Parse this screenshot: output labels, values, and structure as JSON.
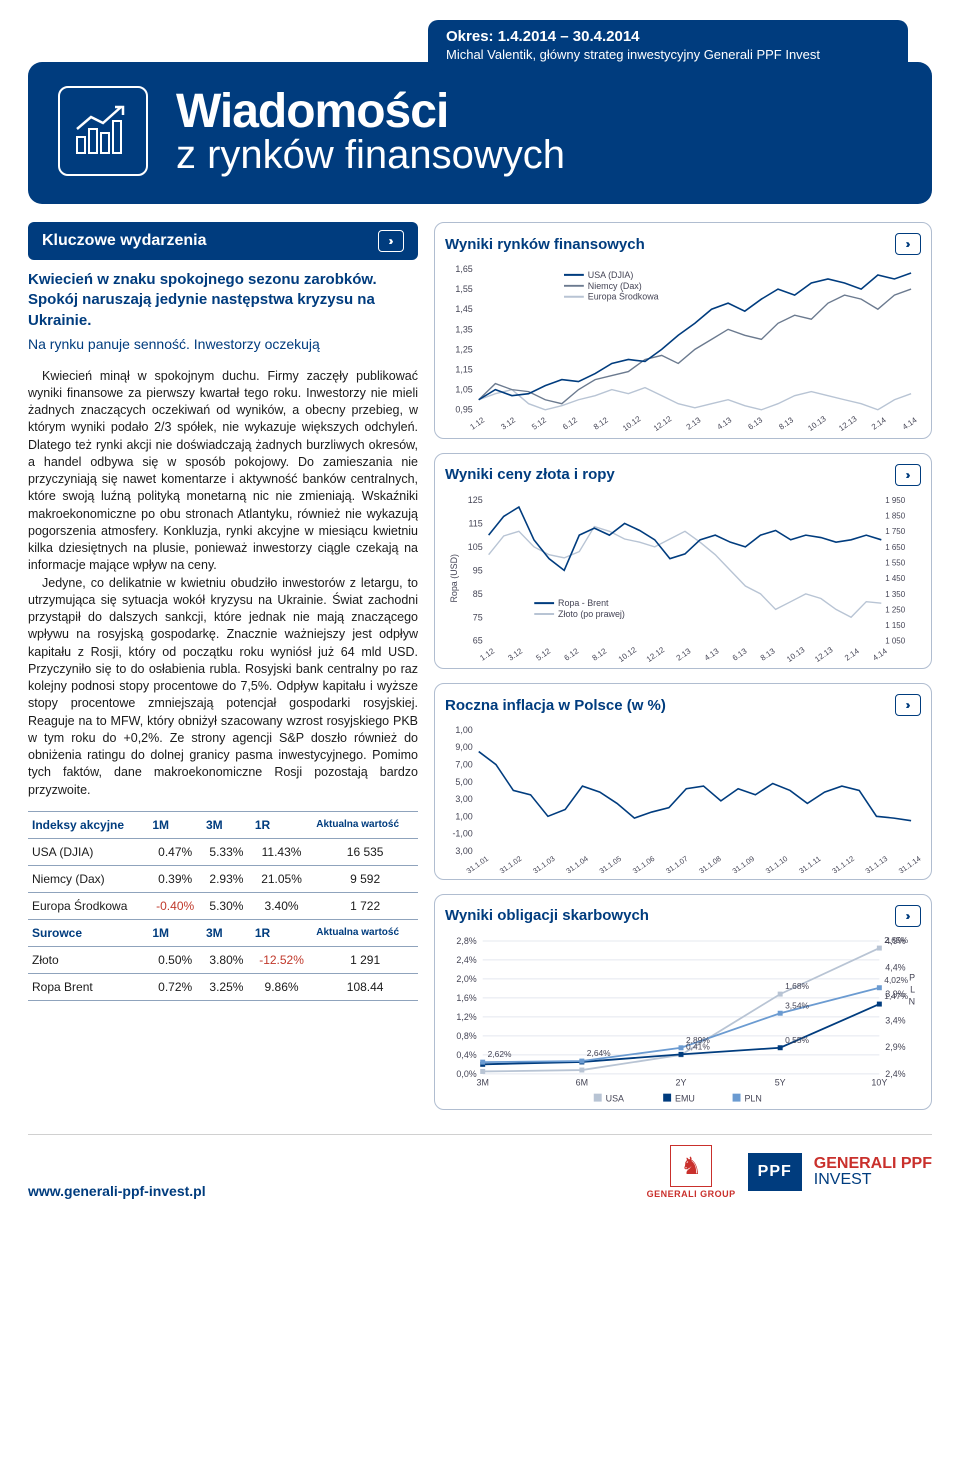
{
  "header": {
    "okres_label": "Okres:",
    "okres_value": "1.4.2014 – 30.4.2014",
    "author": "Michal Valentik, główny strateg inwestycyjny Generali PPF Invest",
    "title1": "Wiadomości",
    "title2": "z rynków finansowych"
  },
  "left": {
    "section_title": "Kluczowe wydarzenia",
    "intro_head": "Kwiecień w znaku spokojnego sezonu zarobków. Spokój naruszają jedynie następstwa kryzysu na Ukrainie.",
    "intro_sub": "Na rynku panuje senność. Inwestorzy oczekują",
    "para1": "Kwiecień minął w spokojnym duchu. Firmy zaczęły publikować wyniki finansowe za pierwszy kwartał tego roku. Inwestorzy nie mieli żadnych znaczących oczekiwań od wyników, a obecny przebieg, w którym wyniki podało 2/3 spółek, nie wykazuje większych odchyleń. Dlatego też rynki akcji nie doświadczają żadnych burzliwych okresów, a handel odbywa się w sposób pokojowy. Do zamieszania nie przyczyniają się nawet komentarze i aktywność banków centralnych, które swoją luźną polityką monetarną nic nie zmieniają. Wskaźniki makroekonomiczne po obu stronach Atlantyku, również nie wykazują pogorszenia atmosfery. Konkluzja, rynki akcyjne w miesiącu kwietniu kilka dziesiętnych na plusie, ponieważ inwestorzy ciągle czekają na informacje mające wpływ na ceny.",
    "para2": "Jedyne, co delikatnie w kwietniu obudziło inwestorów z letargu, to utrzymująca się sytuacja wokół kryzysu na Ukrainie. Świat zachodni przystąpił do dalszych sankcji, które jednak nie mają znaczącego wpływu na rosyjską gospodarkę. Znacznie ważniejszy jest odpływ kapitału z Rosji, który od początku roku wyniósł już 64 mld USD. Przyczyniło się to do osłabienia rubla. Rosyjski bank centralny po raz kolejny podnosi stopy procentowe do 7,5%. Odpływ kapitału i wyższe stopy procentowe zmniejszają potencjał gospodarki rosyjskiej. Reaguje na to MFW, który obniżył szacowany wzrost rosyjskiego PKB w tym roku do +0,2%. Ze strony agencji S&P doszło również do obniżenia ratingu do dolnej granicy pasma inwestycyjnego. Pomimo tych faktów, dane makroekonomiczne Rosji pozostają bardzo przyzwoite."
  },
  "table": {
    "hdr1": "Indeksy akcyjne",
    "cols": [
      "1M",
      "3M",
      "1R"
    ],
    "aktualna": "Aktualna wartość",
    "rows_equity": [
      {
        "name": "USA (DJIA)",
        "m1": "0.47%",
        "m3": "5.33%",
        "y1": "11.43%",
        "val": "16 535"
      },
      {
        "name": "Niemcy (Dax)",
        "m1": "0.39%",
        "m3": "2.93%",
        "y1": "21.05%",
        "val": "9 592"
      },
      {
        "name": "Europa Środkowa",
        "m1": "-0.40%",
        "m3": "5.30%",
        "y1": "3.40%",
        "val": "1 722"
      }
    ],
    "hdr2": "Surowce",
    "rows_commod": [
      {
        "name": "Złoto",
        "m1": "0.50%",
        "m3": "3.80%",
        "y1": "-12.52%",
        "val": "1 291"
      },
      {
        "name": "Ropa Brent",
        "m1": "0.72%",
        "m3": "3.25%",
        "y1": "9.86%",
        "val": "108.44"
      }
    ]
  },
  "charts": {
    "markets": {
      "title": "Wyniki rynków finansowych",
      "legend": [
        "USA (DJIA)",
        "Niemcy (Dax)",
        "Europa Środkowa"
      ],
      "colors": [
        "#003c7e",
        "#6b7a8f",
        "#b8c4d4"
      ],
      "y_ticks": [
        "1,65",
        "1,55",
        "1,45",
        "1,35",
        "1,25",
        "1,15",
        "1,05",
        "0,95"
      ],
      "x_ticks": [
        "1.12",
        "3.12",
        "5.12",
        "6.12",
        "8.12",
        "10.12",
        "12.12",
        "2.13",
        "4.13",
        "6.13",
        "8.13",
        "10.13",
        "12.13",
        "2.14",
        "4.14"
      ],
      "series": {
        "usa": [
          1.0,
          1.05,
          1.02,
          1.03,
          1.07,
          1.1,
          1.09,
          1.13,
          1.18,
          1.2,
          1.19,
          1.25,
          1.32,
          1.38,
          1.45,
          1.48,
          1.44,
          1.5,
          1.55,
          1.52,
          1.58,
          1.6,
          1.58,
          1.55,
          1.62,
          1.6,
          1.63
        ],
        "dax": [
          1.0,
          1.08,
          1.05,
          1.04,
          1.0,
          0.98,
          1.05,
          1.1,
          1.12,
          1.14,
          1.2,
          1.22,
          1.18,
          1.25,
          1.3,
          1.35,
          1.32,
          1.3,
          1.38,
          1.42,
          1.4,
          1.48,
          1.52,
          1.5,
          1.45,
          1.52,
          1.55
        ],
        "cee": [
          1.0,
          1.03,
          1.05,
          0.98,
          0.95,
          0.97,
          1.0,
          1.02,
          1.05,
          1.03,
          1.06,
          1.02,
          0.98,
          0.96,
          0.98,
          1.0,
          0.97,
          0.95,
          0.98,
          1.02,
          1.04,
          1.02,
          1.0,
          0.98,
          0.95,
          1.0,
          1.03
        ]
      },
      "ylim": [
        0.95,
        1.65
      ]
    },
    "gold_oil": {
      "title": "Wyniki ceny złota i ropy",
      "legend": [
        "Ropa - Brent",
        "Złoto (po prawej)"
      ],
      "colors": [
        "#003c7e",
        "#b8c4d4"
      ],
      "y_left": [
        "125",
        "115",
        "105",
        "95",
        "85",
        "75",
        "65"
      ],
      "y_right": [
        "1 950",
        "1 850",
        "1 750",
        "1 650",
        "1 550",
        "1 450",
        "1 350",
        "1 250",
        "1 150",
        "1 050"
      ],
      "y_axis_label": "Ropa (USD)",
      "x_ticks": [
        "1.12",
        "3.12",
        "5.12",
        "6.12",
        "8.12",
        "10.12",
        "12.12",
        "2.13",
        "4.13",
        "6.13",
        "8.13",
        "10.13",
        "12.13",
        "2.14",
        "4.14"
      ],
      "series": {
        "oil": [
          110,
          118,
          122,
          108,
          100,
          95,
          110,
          113,
          110,
          115,
          112,
          108,
          100,
          102,
          108,
          110,
          107,
          105,
          110,
          112,
          108,
          110,
          109,
          107,
          108,
          110,
          108
        ],
        "gold": [
          1600,
          1720,
          1750,
          1650,
          1600,
          1580,
          1620,
          1780,
          1750,
          1700,
          1680,
          1650,
          1700,
          1750,
          1680,
          1600,
          1500,
          1400,
          1350,
          1250,
          1300,
          1350,
          1320,
          1250,
          1200,
          1300,
          1290
        ]
      },
      "oil_lim": [
        65,
        125
      ],
      "gold_lim": [
        1050,
        1950
      ]
    },
    "inflation": {
      "title": "Roczna inflacja w Polsce (w %)",
      "y_ticks": [
        "1,00",
        "9,00",
        "7,00",
        "5,00",
        "3,00",
        "1,00",
        "-1,00",
        "3,00"
      ],
      "x_ticks": [
        "31.1.01",
        "31.1.02",
        "31.1.03",
        "31.1.04",
        "31.1.05",
        "31.1.06",
        "31.1.07",
        "31.1.08",
        "31.1.09",
        "31.1.10",
        "31.1.11",
        "31.1.12",
        "31.1.13",
        "31.1.14"
      ],
      "color": "#003c7e",
      "values": [
        8.5,
        7.0,
        4.0,
        3.5,
        1.0,
        1.8,
        4.5,
        3.8,
        2.5,
        0.8,
        1.5,
        2.0,
        4.2,
        4.5,
        2.8,
        4.2,
        3.5,
        4.8,
        4.0,
        2.5,
        3.8,
        4.5,
        4.0,
        1.0,
        0.8,
        0.5
      ],
      "ylim": [
        -3,
        11
      ]
    },
    "bonds": {
      "title": "Wyniki obligacji skarbowych",
      "legend": [
        "USA",
        "EMU",
        "PLN"
      ],
      "colors": [
        "#b8c4d4",
        "#003c7e",
        "#6b9bd1"
      ],
      "x_ticks": [
        "3M",
        "6M",
        "2Y",
        "5Y",
        "10Y"
      ],
      "y_ticks": [
        "2,8%",
        "2,4%",
        "2,0%",
        "1,6%",
        "1,2%",
        "0,8%",
        "0,4%",
        "0,0%"
      ],
      "right_labels": [
        "4,9%",
        "4,4%",
        "3,9%",
        "3,4%",
        "2,9%",
        "2,4%"
      ],
      "right_letters": [
        "P",
        "L",
        "N"
      ],
      "point_labels": {
        "pln": [
          "2,62%",
          "2,64%",
          "2,89%",
          "3,54%",
          "4,02%"
        ],
        "emu": [
          "",
          "",
          "0,41%",
          "0,55%",
          "1,47%"
        ],
        "usa": [
          "",
          "",
          "",
          "1,68%",
          "2,65%"
        ]
      },
      "series": {
        "usa": [
          0.05,
          0.08,
          0.4,
          1.68,
          2.65
        ],
        "emu": [
          0.2,
          0.25,
          0.41,
          0.55,
          1.47
        ],
        "pln": [
          2.62,
          2.64,
          2.89,
          3.54,
          4.02
        ]
      },
      "ylim": [
        0,
        2.8
      ],
      "right_ylim": [
        2.4,
        4.9
      ]
    }
  },
  "footer": {
    "url": "www.generali-ppf-invest.pl",
    "gen_label": "GENERALI GROUP",
    "ppf": "PPF",
    "gpi1": "GENERALI PPF",
    "gpi2": "INVEST"
  }
}
